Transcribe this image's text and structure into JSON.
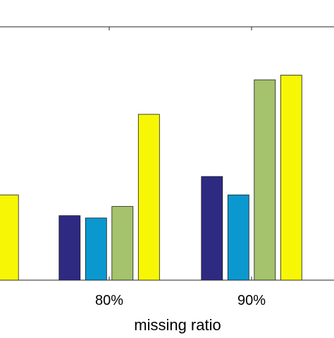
{
  "chart_data": {
    "type": "bar",
    "categories": [
      "",
      "80%",
      "90%"
    ],
    "series": [
      {
        "color": "#2e2a82",
        "values": [
          null,
          0.28,
          0.45
        ]
      },
      {
        "color": "#0b98cf",
        "values": [
          null,
          0.27,
          0.37
        ]
      },
      {
        "color": "#a5c26c",
        "values": [
          null,
          0.32,
          0.87
        ]
      },
      {
        "color": "#f7f705",
        "values": [
          0.37,
          0.72,
          0.89
        ]
      }
    ],
    "xlabel": "missing ratio",
    "ylabel": "",
    "title": "",
    "ylim": [
      0,
      1.1
    ],
    "grid": false,
    "legend": false
  }
}
